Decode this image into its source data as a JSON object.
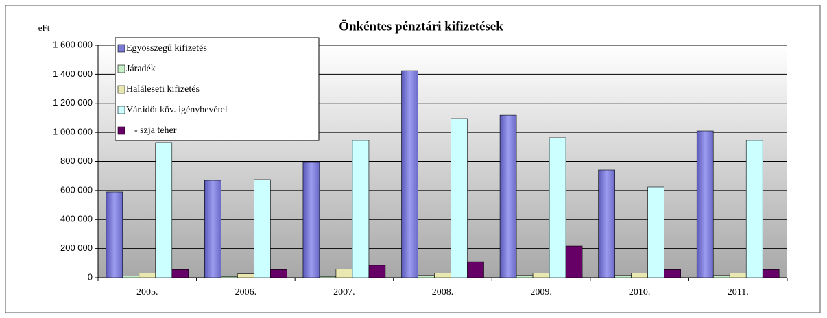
{
  "chart_data": {
    "type": "bar",
    "title": "Önkéntes pénztári kifizetések",
    "y_label": "eFt",
    "categories": [
      "2005.",
      "2006.",
      "2007.",
      "2008.",
      "2009.",
      "2010.",
      "2011."
    ],
    "series": [
      {
        "name": "Egyösszegű kifizetés",
        "color": "#7b7bd6",
        "values": [
          590000,
          670000,
          793000,
          1425000,
          1118000,
          741000,
          1010000
        ]
      },
      {
        "name": "Járadék",
        "color": "#c8f0c8",
        "values": [
          12000,
          8000,
          8000,
          15000,
          15000,
          15000,
          15000
        ]
      },
      {
        "name": "Haláleseti kifizetés",
        "color": "#e8e8b0",
        "values": [
          30000,
          25000,
          60000,
          30000,
          30000,
          30000,
          30000
        ]
      },
      {
        "name": "Vár.időt köv. igénybevétel",
        "color": "#ccffff",
        "values": [
          930000,
          675000,
          944000,
          1095000,
          963000,
          623000,
          944000
        ]
      },
      {
        "name": "- szja teher",
        "color": "#660066",
        "values": [
          55000,
          55000,
          85000,
          108000,
          217000,
          55000,
          55000
        ]
      }
    ],
    "ylim": [
      0,
      1600000
    ],
    "yticks": [
      0,
      {
        "value": 200000,
        "label": "200 000"
      },
      {
        "value": 400000,
        "label": "400 000"
      },
      {
        "value": 600000,
        "label": "600 000"
      },
      {
        "value": 800000,
        "label": "800 000"
      },
      {
        "value": 1000000,
        "label": "1 000 000"
      },
      {
        "value": 1200000,
        "label": "1 200 000"
      },
      {
        "value": 1400000,
        "label": "1 400 000"
      },
      {
        "value": 1600000,
        "label": "1 600 000"
      }
    ],
    "grid": true,
    "legend": "top-left"
  }
}
